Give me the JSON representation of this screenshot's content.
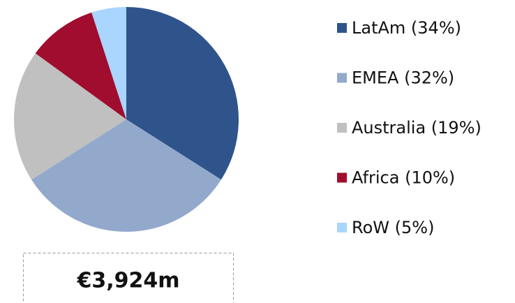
{
  "chart_data": {
    "type": "pie",
    "categories": [
      "LatAm (34%)",
      "EMEA (32%)",
      "Australia (19%)",
      "Africa (10%)",
      "RoW (5%)"
    ],
    "values": [
      34,
      32,
      19,
      10,
      5
    ],
    "colors": [
      "#2f548b",
      "#93a9cc",
      "#c0c0c0",
      "#a00d2f",
      "#a9d5ff"
    ],
    "legend": "right",
    "annotation": "€3,924m"
  }
}
